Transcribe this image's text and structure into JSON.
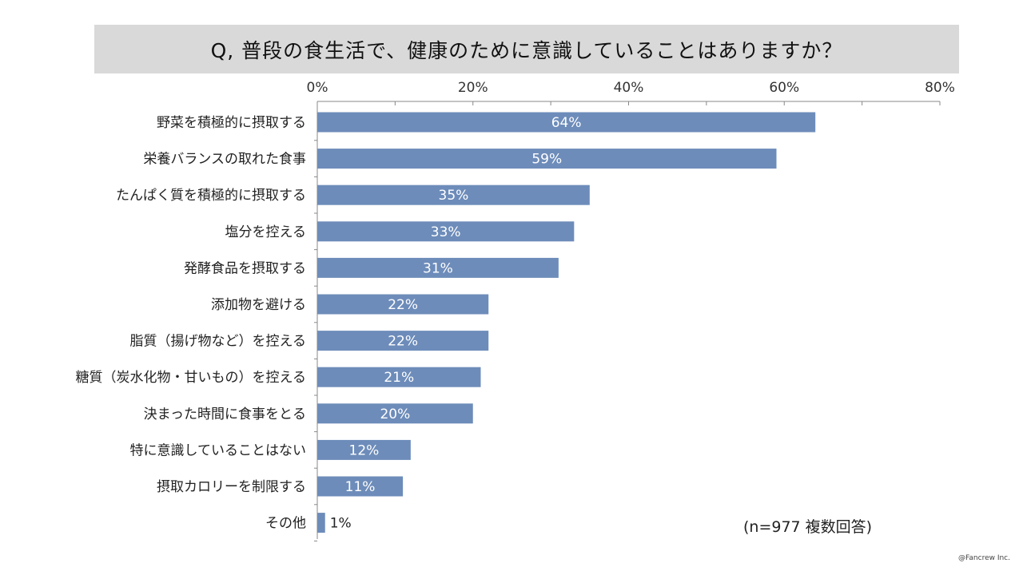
{
  "title": "Q, 普段の食生活で、健康のために意識していることはありますか？",
  "note": "(n=977 複数回答)",
  "copyright": "@Fancrew Inc.",
  "colors": {
    "bar": "#6d8cba",
    "title_bg": "#d9d9d9",
    "axis": "#888888"
  },
  "chart_data": {
    "type": "bar",
    "orientation": "horizontal",
    "categories": [
      "野菜を積極的に摂取する",
      "栄養バランスの取れた食事",
      "たんぱく質を積極的に摂取する",
      "塩分を控える",
      "発酵食品を摂取する",
      "添加物を避ける",
      "脂質（揚げ物など）を控える",
      "糖質（炭水化物・甘いもの）を控える",
      "決まった時間に食事をとる",
      "特に意識していることはない",
      "摂取カロリーを制限する",
      "その他"
    ],
    "values": [
      64,
      59,
      35,
      33,
      31,
      22,
      22,
      21,
      20,
      12,
      11,
      1
    ],
    "value_labels": [
      "64%",
      "59%",
      "35%",
      "33%",
      "31%",
      "22%",
      "22%",
      "21%",
      "20%",
      "12%",
      "11%",
      "1%"
    ],
    "xlim": [
      0,
      80
    ],
    "xticks": [
      0,
      20,
      40,
      60,
      80
    ],
    "xtick_labels": [
      "0%",
      "20%",
      "40%",
      "60%",
      "80%"
    ],
    "axis_position": "top",
    "grid": false,
    "legend": "none"
  }
}
